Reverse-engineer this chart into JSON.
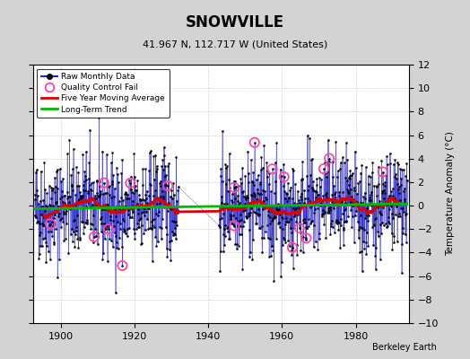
{
  "title": "SNOWVILLE",
  "subtitle": "41.967 N, 112.717 W (United States)",
  "ylabel": "Temperature Anomaly (°C)",
  "watermark": "Berkeley Earth",
  "start_year": 1893,
  "end_year": 1993,
  "ylim": [
    -10,
    12
  ],
  "yticks": [
    -10,
    -8,
    -6,
    -4,
    -2,
    0,
    2,
    4,
    6,
    8,
    10,
    12
  ],
  "xticks": [
    1900,
    1920,
    1940,
    1960,
    1980
  ],
  "background_color": "#d3d3d3",
  "plot_bg_color": "#ffffff",
  "grid_color": "#c8c8c8",
  "line_color": "#2222cc",
  "moving_avg_color": "#dd0000",
  "trend_color": "#00bb00",
  "qc_fail_color": "#ff44aa",
  "dot_color": "#000000",
  "seed": 42,
  "gap_start_year": 1932,
  "gap_end_year": 1943,
  "long_term_slope": 0.0008,
  "long_term_intercept": -0.15
}
